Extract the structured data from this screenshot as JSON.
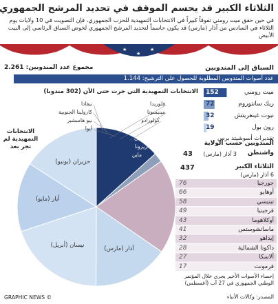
{
  "header": {
    "title": "الثلاثاء الكبير قد يحسم الموقف في تحديد المرشح الجمهوري",
    "subtitle": "في حين حقق ميت رومني تفوقاً كبيراً في الانتخابات التمهيدية للحزب الجمهوري، فإن التصويت في 10 ولايات يوم الثلاثاء في السادس من آذار (مارس) قد يكون حاسماً لتحديد المرشح الجمهوري لخوض السباق الرئاسي إلى البيت الأبيض"
  },
  "total_delegates": "مجموع عدد المندوبين: 2.261",
  "required": "عدد أصوات المندوبين المطلوبة للحصول على الترشيح: 1.144",
  "chart_data": [
    {
      "type": "bar",
      "title": "السباق إلى المندوبين",
      "categories": [
        "ميت رومني",
        "ريك سانتوروم",
        "نيوت غينغريتش",
        "رون بول"
      ],
      "values": [
        152,
        72,
        32,
        19
      ],
      "colors": [
        "#2b4e8f",
        "#7d9bc6",
        "#a3badb",
        "#c2d2e9"
      ],
      "note": "تقديرات أسوشيتد برس"
    },
    {
      "type": "pie",
      "title": "الانتخابات التمهيدية التي جرت حتى الآن (302 مندوبا)",
      "categories": [
        null,
        null,
        null,
        "آذار (مارس)",
        "نيسان (أبريل)",
        "أيار (مايو)",
        "حزيران (يونيو)"
      ],
      "values": [
        302,
        43,
        437,
        350,
        450,
        320,
        359
      ],
      "colors": [
        "#1f3a70",
        "#8e9fba",
        "#c9aebf",
        "#c4d8ee",
        "#d3e3f4",
        "#bcd2ec",
        "#cfe0f3"
      ],
      "annotation": "الانتخابات التمهيدية لم تجر بعد",
      "completed_states": [
        "نيفادا",
        "كارولينا الجنوبية",
        "نيو هامبشير",
        "أيوا",
        "فلوريدا",
        "مينيسوتا",
        "كولورادو",
        "ميشيغان",
        "أريزونا",
        "ماين"
      ]
    }
  ],
  "table": {
    "title": "المندوبين حسب الولاية",
    "washington": {
      "name": "واشنطن",
      "date": "3 آذار (مارس)"
    },
    "super_tuesday": {
      "name": "الثلاثاء الكبير",
      "date": "6 آذار (مارس)"
    },
    "rows": [
      [
        "جورجيا",
        "76"
      ],
      [
        "أوهايو",
        "66"
      ],
      [
        "تينيسي",
        "58"
      ],
      [
        "فرجينيا",
        "49"
      ],
      [
        "أوكلاهوما",
        "43"
      ],
      [
        "ماساتشوستس",
        "41"
      ],
      [
        "إيداهو",
        "32"
      ],
      [
        "داكوتا الشمالية",
        "28"
      ],
      [
        "ألاسكا",
        "27"
      ],
      [
        "فرمونت",
        "17"
      ]
    ]
  },
  "footnote": "إحصاء الأصوات الأخير يجري خلال المؤتمر الوطني الجمهوري في 27 آب (أغسطس)",
  "source": "المصدر: وكالات الأنباء",
  "credit": "© GRAPHIC NEWS"
}
